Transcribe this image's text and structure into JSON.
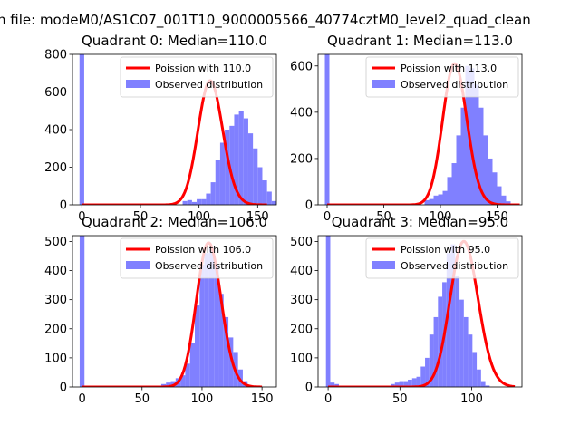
{
  "figure": {
    "suptitle": "n file: modeM0/AS1C07_001T10_9000005566_40774cztM0_level2_quad_clean"
  },
  "colors": {
    "hist": "#8080ff",
    "poisson": "#ff0000"
  },
  "chart_data": [
    {
      "type": "bar",
      "title": "Quadrant 0: Median=110.0",
      "xlim": [
        -8,
        166
      ],
      "ylim": [
        0,
        800
      ],
      "xticks": [
        0,
        50,
        100,
        150
      ],
      "yticks": [
        0,
        200,
        400,
        600,
        800
      ],
      "bin_start": -2,
      "bin_width": 4,
      "hist_values": [
        800,
        0,
        0,
        0,
        0,
        0,
        0,
        0,
        0,
        0,
        0,
        0,
        0,
        0,
        0,
        0,
        0,
        0,
        0,
        0,
        0,
        0,
        20,
        25,
        15,
        30,
        30,
        60,
        120,
        240,
        330,
        400,
        420,
        480,
        500,
        460,
        380,
        300,
        200,
        130,
        70,
        20,
        5
      ],
      "poisson_mean": 110,
      "poisson_scale": 660,
      "poisson_x_range": [
        0,
        158
      ],
      "legend": [
        "Poission with 110.0",
        "Observed distribution"
      ]
    },
    {
      "type": "bar",
      "title": "Quadrant 1: Median=113.0",
      "xlim": [
        -8,
        172
      ],
      "ylim": [
        0,
        650
      ],
      "xticks": [
        0,
        50,
        100,
        150
      ],
      "yticks": [
        0,
        200,
        400,
        600
      ],
      "bin_start": -2,
      "bin_width": 4,
      "hist_values": [
        650,
        0,
        0,
        0,
        0,
        0,
        0,
        0,
        0,
        0,
        0,
        0,
        0,
        0,
        0,
        0,
        0,
        0,
        0,
        0,
        0,
        0,
        20,
        25,
        40,
        45,
        60,
        120,
        180,
        300,
        420,
        600,
        590,
        520,
        420,
        300,
        200,
        140,
        80,
        40,
        15,
        5,
        0
      ],
      "poisson_mean": 113,
      "poisson_scale": 610,
      "poisson_x_range": [
        0,
        170
      ],
      "legend": [
        "Poission with 113.0",
        "Observed distribution"
      ]
    },
    {
      "type": "bar",
      "title": "Quadrant 2: Median=106.0",
      "xlim": [
        -8,
        162
      ],
      "ylim": [
        0,
        520
      ],
      "xticks": [
        0,
        50,
        100,
        150
      ],
      "yticks": [
        0,
        100,
        200,
        300,
        400,
        500
      ],
      "bin_start": -2,
      "bin_width": 4,
      "hist_values": [
        520,
        0,
        0,
        0,
        0,
        0,
        0,
        0,
        0,
        0,
        0,
        0,
        0,
        0,
        0,
        0,
        0,
        10,
        15,
        20,
        30,
        40,
        80,
        150,
        280,
        420,
        460,
        480,
        420,
        320,
        240,
        170,
        120,
        60,
        20,
        0,
        0,
        0,
        0,
        0,
        0
      ],
      "poisson_mean": 106,
      "poisson_scale": 495,
      "poisson_x_range": [
        0,
        150
      ],
      "legend": [
        "Poission with 106.0",
        "Observed distribution"
      ]
    },
    {
      "type": "bar",
      "title": "Quadrant 3: Median=95.0",
      "xlim": [
        -7,
        135
      ],
      "ylim": [
        0,
        520
      ],
      "xticks": [
        0,
        50,
        100
      ],
      "yticks": [
        0,
        100,
        200,
        300,
        400,
        500
      ],
      "bin_start": -1.5,
      "bin_width": 3,
      "hist_values": [
        520,
        15,
        10,
        0,
        0,
        0,
        0,
        0,
        0,
        0,
        0,
        0,
        0,
        0,
        0,
        10,
        15,
        20,
        20,
        25,
        30,
        35,
        70,
        100,
        180,
        240,
        310,
        360,
        460,
        490,
        380,
        300,
        240,
        180,
        120,
        60,
        20,
        5,
        0,
        0,
        0,
        0,
        0,
        0
      ],
      "poisson_mean": 95,
      "poisson_scale": 500,
      "poisson_x_range": [
        0,
        130
      ],
      "legend": [
        "Poission with 95.0",
        "Observed distribution"
      ]
    }
  ]
}
